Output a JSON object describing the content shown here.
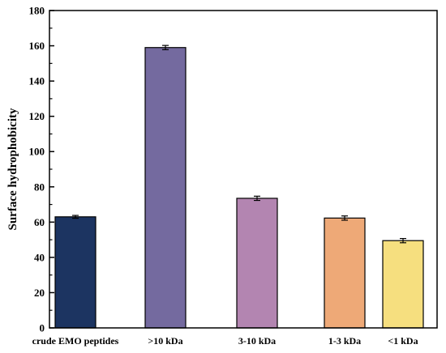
{
  "chart_data": {
    "type": "bar",
    "title": "",
    "xlabel": "",
    "ylabel": "Surface hydrophobicity",
    "ylim": [
      0,
      180
    ],
    "yticks": [
      0,
      20,
      40,
      60,
      80,
      100,
      120,
      140,
      160,
      180
    ],
    "categories": [
      "crude EMO peptides",
      ">10 kDa",
      "3-10 kDa",
      "1-3 kDa",
      "<1 kDa"
    ],
    "values": [
      63.0,
      159.0,
      73.5,
      62.3,
      49.5
    ],
    "errors": [
      0.8,
      1.2,
      1.2,
      1.2,
      1.2
    ],
    "colors": [
      "#1c3461",
      "#746a9f",
      "#b385b1",
      "#eea977",
      "#f6df7f"
    ],
    "grid": false,
    "legend": "none"
  }
}
